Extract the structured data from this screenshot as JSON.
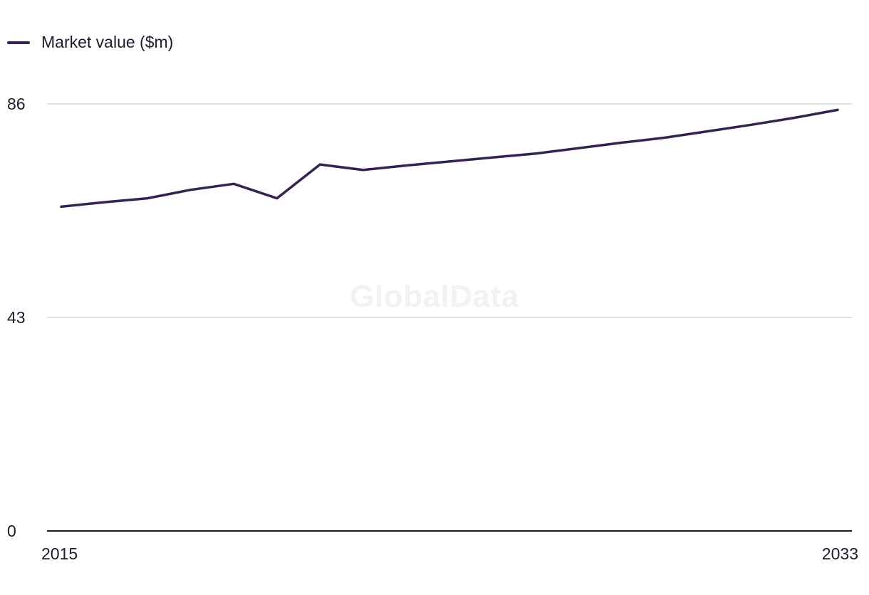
{
  "chart_data": {
    "type": "line",
    "title": "",
    "xlabel": "",
    "ylabel": "",
    "x": [
      2015,
      2016,
      2017,
      2018,
      2019,
      2020,
      2021,
      2022,
      2023,
      2024,
      2025,
      2026,
      2027,
      2028,
      2029,
      2030,
      2031,
      2032,
      2033
    ],
    "series": [
      {
        "name": "Market value ($m)",
        "values": [
          65.3,
          66.2,
          67.0,
          68.7,
          69.9,
          67.0,
          73.8,
          72.7,
          73.6,
          74.4,
          75.2,
          76.0,
          77.1,
          78.2,
          79.2,
          80.5,
          81.8,
          83.2,
          84.8
        ]
      }
    ],
    "ylim": [
      0,
      86
    ],
    "y_ticks": [
      "0",
      "43",
      "86"
    ],
    "x_tick_labels": [
      "2015",
      "2033"
    ],
    "grid": true,
    "legend_position": "top-left",
    "colors": {
      "line": "#35224f",
      "grid": "#d9d9d9",
      "axis": "#1f1a2e",
      "text": "#1f1a2e"
    }
  },
  "watermark": "GlobalData"
}
